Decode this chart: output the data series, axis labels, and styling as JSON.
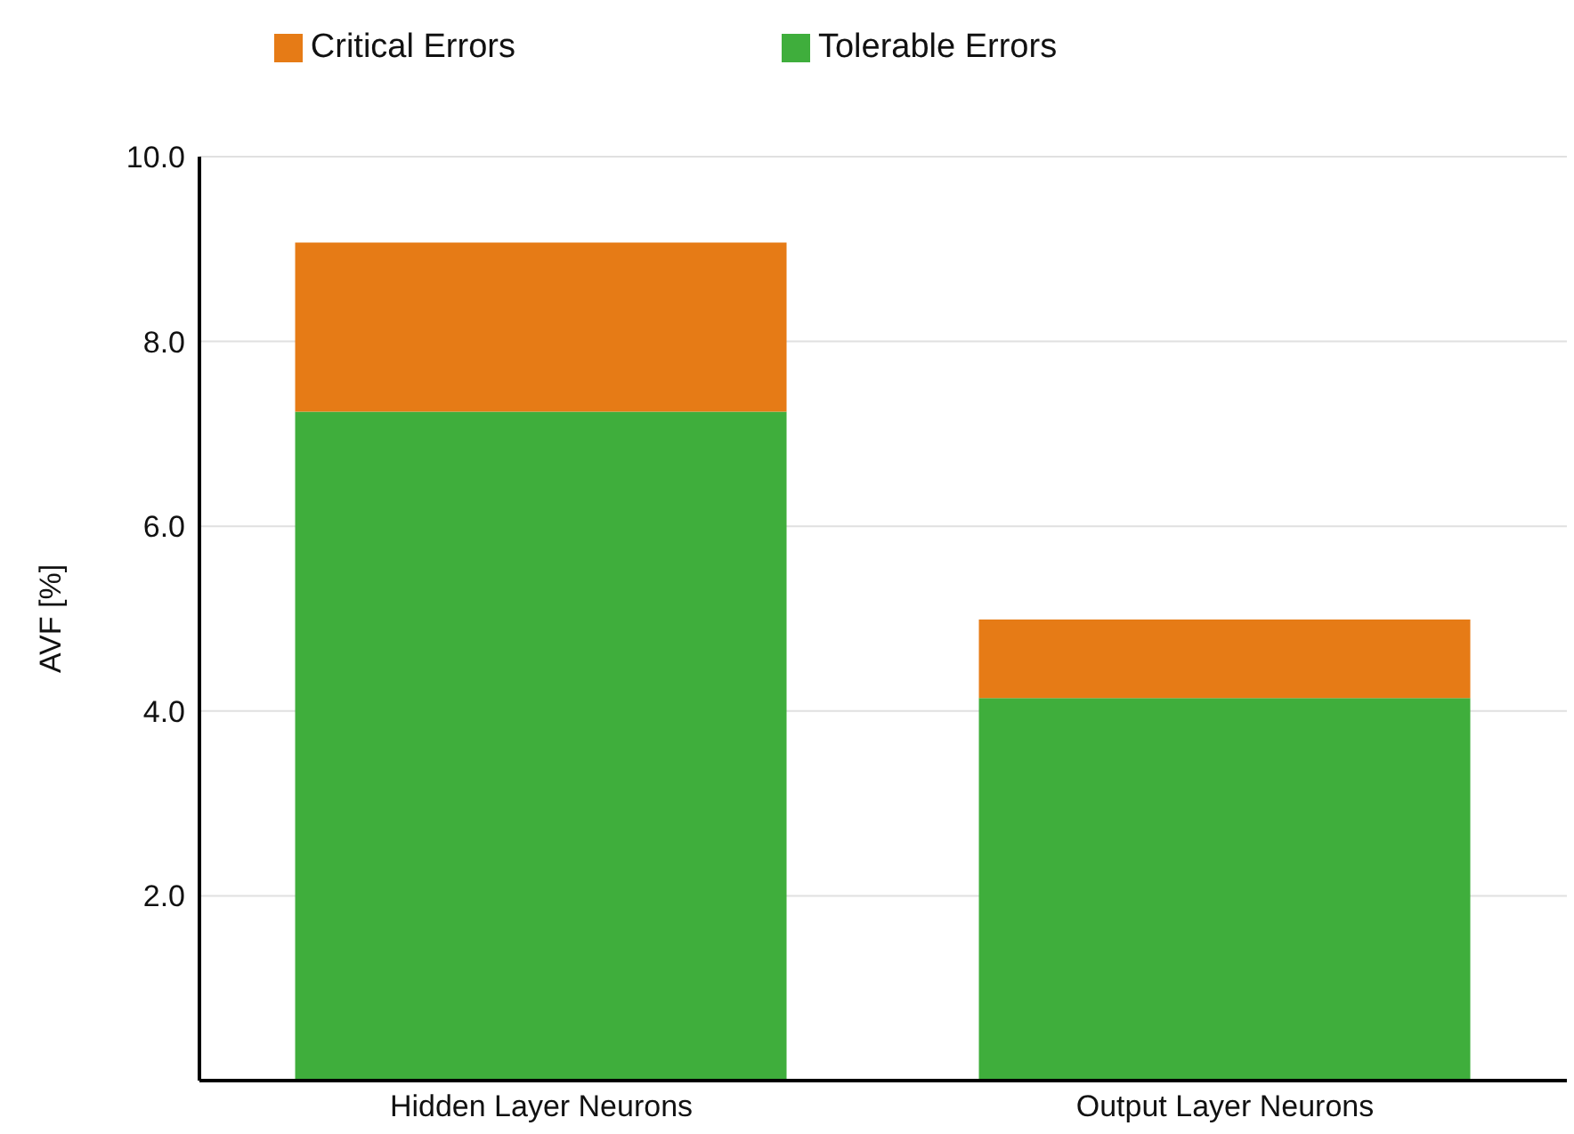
{
  "chart_data": {
    "type": "bar",
    "ylabel": "AVF [%]",
    "categories": [
      "Hidden Layer Neurons",
      "Output Layer Neurons"
    ],
    "stacked": true,
    "series": [
      {
        "name": "Tolerable Errors",
        "color": "#3fae3c",
        "values": [
          7.24,
          4.14
        ]
      },
      {
        "name": "Critical Errors",
        "color": "#e67b16",
        "values": [
          1.83,
          0.85
        ]
      }
    ],
    "ylim": [
      0,
      10
    ],
    "yticks": [
      {
        "value": 2,
        "label": "2.0"
      },
      {
        "value": 4,
        "label": "4.0"
      },
      {
        "value": 6,
        "label": "6.0"
      },
      {
        "value": 8,
        "label": "8.0"
      },
      {
        "value": 10,
        "label": "10.0"
      }
    ],
    "grid": "y",
    "legend": "top"
  }
}
